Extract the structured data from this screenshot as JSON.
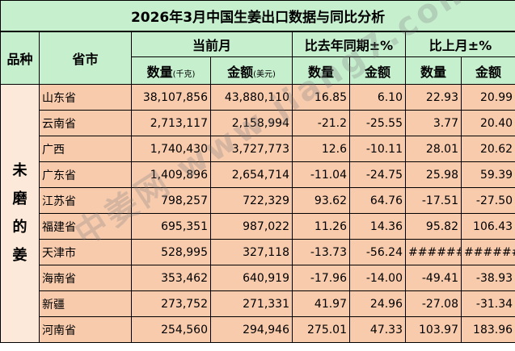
{
  "title": "2026年3月中国生姜出口数据与同比分析",
  "headers": {
    "category": "品种",
    "province": "省市",
    "current_month": "当前月",
    "yoy": "比去年同期±%",
    "mom": "比上月±%",
    "qty": "数量",
    "qty_unit": "(千克)",
    "amt": "金额",
    "amt_unit": "(美元)",
    "qty2": "数量",
    "amt2": "金额",
    "qty3": "数量",
    "amt3": "金额"
  },
  "category": [
    "未",
    "磨",
    "的",
    "姜"
  ],
  "rows": [
    {
      "province": "山东省",
      "qty": "38,107,856",
      "amt": "43,880,110",
      "yoy_qty": "16.85",
      "yoy_amt": "6.10",
      "mom_qty": "22.93",
      "mom_amt": "20.99"
    },
    {
      "province": "云南省",
      "qty": "2,713,117",
      "amt": "2,158,994",
      "yoy_qty": "-21.2",
      "yoy_amt": "-25.55",
      "mom_qty": "3.77",
      "mom_amt": "20.40"
    },
    {
      "province": "广西",
      "qty": "1,740,430",
      "amt": "3,727,773",
      "yoy_qty": "12.6",
      "yoy_amt": "-10.11",
      "mom_qty": "28.01",
      "mom_amt": "20.62"
    },
    {
      "province": "广东省",
      "qty": "1,409,896",
      "amt": "2,654,714",
      "yoy_qty": "-11.04",
      "yoy_amt": "-24.75",
      "mom_qty": "25.98",
      "mom_amt": "59.39"
    },
    {
      "province": "江苏省",
      "qty": "798,257",
      "amt": "722,329",
      "yoy_qty": "93.62",
      "yoy_amt": "64.76",
      "mom_qty": "-17.51",
      "mom_amt": "-27.50"
    },
    {
      "province": "福建省",
      "qty": "695,351",
      "amt": "987,022",
      "yoy_qty": "11.26",
      "yoy_amt": "14.36",
      "mom_qty": "95.82",
      "mom_amt": "106.43"
    },
    {
      "province": "天津市",
      "qty": "528,995",
      "amt": "327,118",
      "yoy_qty": "-13.73",
      "yoy_amt": "-56.24",
      "mom_qty": "########",
      "mom_amt": "########"
    },
    {
      "province": "海南省",
      "qty": "353,462",
      "amt": "640,919",
      "yoy_qty": "-17.96",
      "yoy_amt": "-14.00",
      "mom_qty": "-49.41",
      "mom_amt": "-38.93"
    },
    {
      "province": "新疆",
      "qty": "273,752",
      "amt": "271,331",
      "yoy_qty": "41.97",
      "yoy_amt": "24.96",
      "mom_qty": "-27.08",
      "mom_amt": "-31.34"
    },
    {
      "province": "河南省",
      "qty": "254,560",
      "amt": "294,946",
      "yoy_qty": "275.01",
      "yoy_amt": "47.33",
      "mom_qty": "103.97",
      "mom_amt": "183.96"
    }
  ],
  "watermark": "中姜网 www.jiang7.com"
}
